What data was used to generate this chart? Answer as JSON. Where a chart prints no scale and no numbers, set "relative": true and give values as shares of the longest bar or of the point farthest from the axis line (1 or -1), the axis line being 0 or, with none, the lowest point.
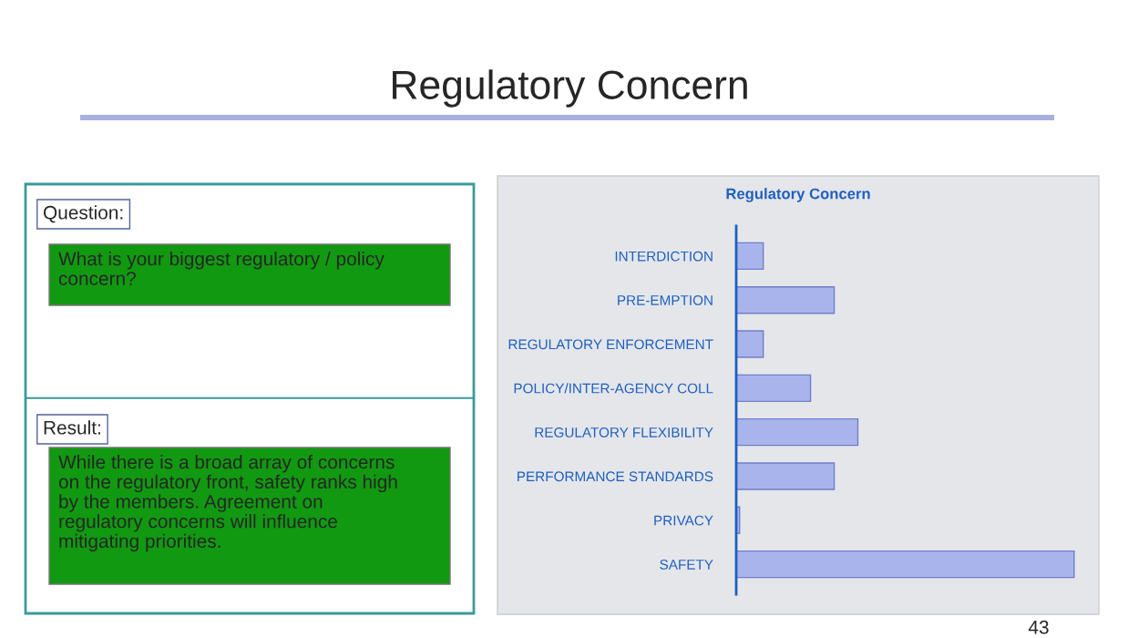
{
  "chart_data": {
    "type": "bar",
    "orientation": "horizontal",
    "relative": true,
    "title": "Regulatory Concern",
    "subtitle": "Regulatory Concern",
    "categories": [
      "INTERDICTION",
      "PRE-EMPTION",
      "REGULATORY ENFORCEMENT",
      "POLICY/INTER-AGENCY COLL",
      "REGULATORY FLEXIBILITY",
      "PERFORMANCE STANDARDS",
      "PRIVACY",
      "SAFETY"
    ],
    "values": [
      0.08,
      0.29,
      0.08,
      0.22,
      0.36,
      0.29,
      0.01,
      1
    ],
    "color": "#aab4ec",
    "annotations": [
      "Question:",
      "What is your biggest regulatory / policy concern?",
      "Result:",
      "While there is a broad array of concerns on the regulatory front, safety ranks high by the members. Agreement on regulatory concerns will influence mitigating priorities.",
      "43"
    ]
  }
}
